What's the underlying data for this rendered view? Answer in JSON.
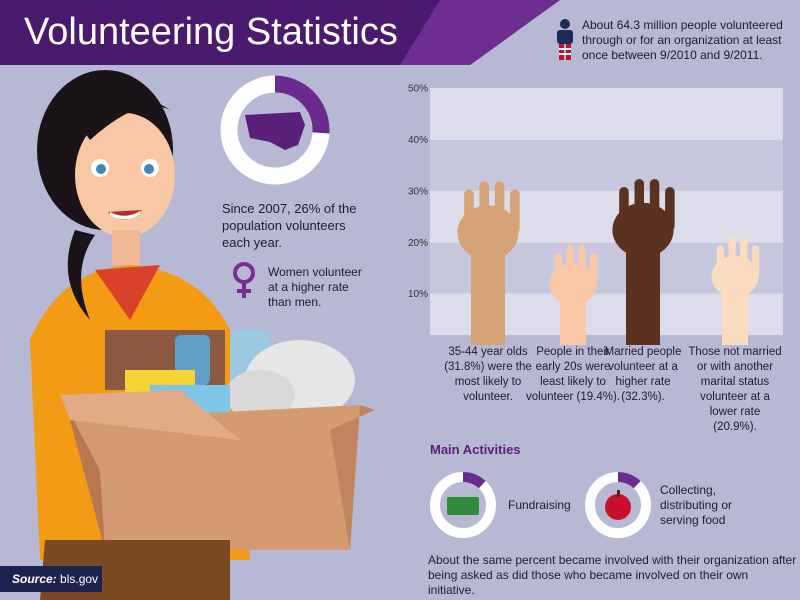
{
  "header": {
    "title": "Volunteering Statistics"
  },
  "stat": {
    "text": "About 64.3 million people volunteered through or for an organization at least once between 9/2010 and 9/2011."
  },
  "donut": {
    "value": 26,
    "text": "Since 2007, 26% of the population volunteers each year."
  },
  "women": {
    "text": "Women volunteer at a higher rate than men."
  },
  "chart_data": {
    "type": "bar",
    "categories": [
      "35-44 year olds (31.8%) were the most likely to volunteer.",
      "People in their early 20s were least likely to volunteer (19.4%).",
      "Married people volunteer at a higher rate (32.3%).",
      "Those not married or with another marital status volunteer at a lower rate (20.9%)."
    ],
    "values": [
      31.8,
      19.4,
      32.3,
      20.9
    ],
    "colors": [
      "#d6a277",
      "#f9c8a6",
      "#5b321f",
      "#fbdcc1"
    ],
    "ylim": [
      0,
      50
    ],
    "yticks": [
      {
        "value": 50,
        "label": "50%"
      },
      {
        "value": 40,
        "label": "40%"
      },
      {
        "value": 30,
        "label": "30%"
      },
      {
        "value": 20,
        "label": "20%"
      },
      {
        "value": 10,
        "label": "10%"
      }
    ]
  },
  "activities": {
    "title": "Main Activities",
    "items": [
      {
        "label": "Fundraising",
        "value": 12
      },
      {
        "label": "Collecting, distributing or serving food",
        "value": 12
      }
    ],
    "note": "About the same percent became involved with their organization after being asked as did those who became involved on their own initiative."
  },
  "source": {
    "label": "Source:",
    "text": "bls.gov"
  }
}
